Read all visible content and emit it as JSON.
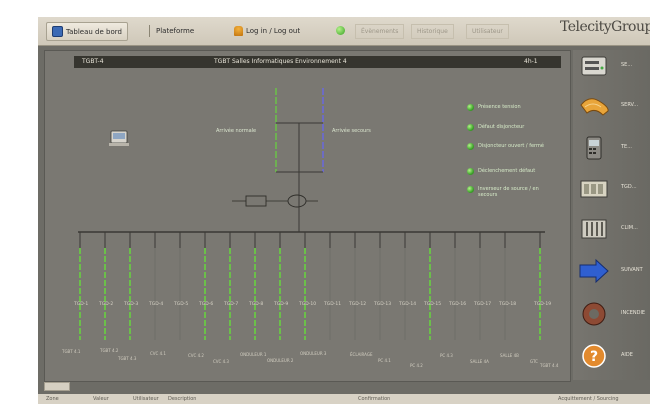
{
  "toolbar": {
    "dashboard_label": "Tableau de bord",
    "map_label": "Plateforme",
    "logout_label": "Log in / Log out",
    "dim_tab_1": "Évènements",
    "dim_tab_2": "Historique",
    "dim_tab_3": "Utilisateur",
    "brand": "TelecityGroup"
  },
  "panel": {
    "title_left": "TGBT-4",
    "title_center": "TGBT Salles Informatiques Environnement 4",
    "title_right": "4h-1",
    "source_left_label": "Arrivée normale",
    "source_right_label": "Arrivée secours",
    "legend": [
      "Présence tension",
      "Défaut disjoncteur",
      "Disjoncteur ouvert / fermé",
      "Déclenchement défaut",
      "Inverseur de source / en secours"
    ],
    "feeder_labels": [
      "TGD-1",
      "TGD-2",
      "TGD-3",
      "TGD-4",
      "TGD-5",
      "TGD-6",
      "TGD-7",
      "TGD-8",
      "TGD-9",
      "TGD-10",
      "TGD-11",
      "TGD-12",
      "TGD-13",
      "TGD-14",
      "TGD-15",
      "TGD-16",
      "TGD-17",
      "TGD-18",
      "TGD-19"
    ],
    "bottom_labels": [
      "TGBT 4.1",
      "TGBT 4.2",
      "TGBT 4.3",
      "CVC 4.1",
      "CVC 4.2",
      "CVC 4.3",
      "ONDULEUR 1",
      "ONDULEUR 2",
      "ONDULEUR 3",
      "ÉCLAIRAGE",
      "PC 4.1",
      "PC 4.2",
      "PC 4.3",
      "SALLE 4A",
      "SALLE 4B",
      "GTC",
      "TGBT 4.4"
    ]
  },
  "sidebar": {
    "items": [
      {
        "icon": "rack-server-icon",
        "label": "SE..."
      },
      {
        "icon": "cable-bundle-icon",
        "label": "SERV..."
      },
      {
        "icon": "telephone-icon",
        "label": "TE..."
      },
      {
        "icon": "distribution-cabinet-icon",
        "label": "TGD..."
      },
      {
        "icon": "radiator-icon",
        "label": "CLIM..."
      },
      {
        "icon": "arrow-navigate-icon",
        "label": "SUIVANT"
      },
      {
        "icon": "fire-hose-icon",
        "label": "INCENDIE"
      },
      {
        "icon": "help-icon",
        "label": "AIDE"
      }
    ]
  },
  "status": {
    "left": "Zone",
    "center_left": "Valeur",
    "center": "Utilisateur",
    "center_right": "Description",
    "mid": "Confirmation",
    "right": "Acquittement / Sourcing"
  },
  "colors": {
    "panel_bg": "#7a7872",
    "line_green": "#6bbf4a",
    "line_blue": "#6a6ad8",
    "bus_dark": "#3a3935"
  }
}
